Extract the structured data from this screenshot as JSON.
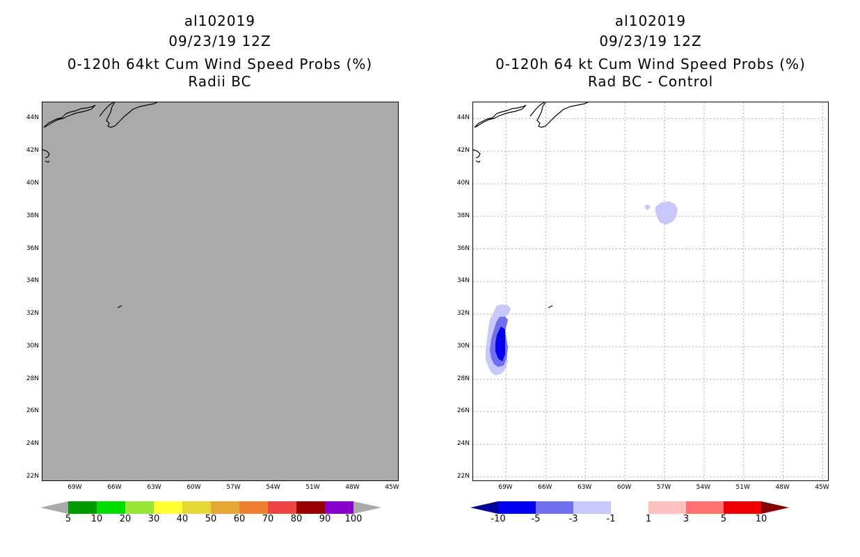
{
  "chart_data": [
    {
      "type": "heatmap",
      "title_lines": [
        "al102019",
        "09/23/19 12Z",
        "0-120h 64kt Cum Wind Speed Probs (%)",
        "Radii BC"
      ],
      "lon_ticks": [
        "69W",
        "66W",
        "63W",
        "60W",
        "57W",
        "54W",
        "51W",
        "48W",
        "45W"
      ],
      "lat_ticks": [
        "44N",
        "42N",
        "40N",
        "38N",
        "36N",
        "34N",
        "32N",
        "30N",
        "28N",
        "26N",
        "24N",
        "22N"
      ],
      "lon_range": [
        -71.5,
        -44.5
      ],
      "lat_range": [
        21.7,
        45.0
      ],
      "grid": false,
      "field_background": "#aaaaaa",
      "colorbar": {
        "labels": [
          "5",
          "10",
          "20",
          "30",
          "40",
          "50",
          "60",
          "70",
          "80",
          "90",
          "100"
        ],
        "colors": [
          "#009900",
          "#00dd00",
          "#99e533",
          "#ffff33",
          "#e5d933",
          "#e5a933",
          "#ee8033",
          "#ee4444",
          "#990000",
          "#8800cc"
        ],
        "under_color": "#aaaaaa",
        "over_color": "#aaaaaa"
      }
    },
    {
      "type": "heatmap",
      "title_lines": [
        "al102019",
        "09/23/19 12Z",
        "0-120h 64 kt Cum Wind Speed Probs (%)",
        "Rad BC - Control"
      ],
      "lon_ticks": [
        "69W",
        "66W",
        "63W",
        "60W",
        "57W",
        "54W",
        "51W",
        "48W",
        "45W"
      ],
      "lat_ticks": [
        "44N",
        "42N",
        "40N",
        "38N",
        "36N",
        "34N",
        "32N",
        "30N",
        "28N",
        "26N",
        "24N",
        "22N"
      ],
      "lon_range": [
        -71.5,
        -44.5
      ],
      "lat_range": [
        21.7,
        45.0
      ],
      "grid": true,
      "field_background": "#ffffff",
      "contours": [
        {
          "level": -1,
          "color": "#c8c8ff",
          "center": [
            -68.1,
            30.3
          ]
        },
        {
          "level": -3,
          "color": "#7070ee",
          "center": [
            -68.3,
            30.1
          ]
        },
        {
          "level": -5,
          "color": "#0000ee",
          "center": [
            -68.6,
            30.1
          ]
        },
        {
          "level": -1,
          "color": "#c8c8ff",
          "center": [
            -56.6,
            38.2
          ]
        },
        {
          "level": -1,
          "color": "#c8c8ff",
          "center": [
            -57.5,
            38.5
          ]
        }
      ],
      "colorbar": {
        "labels": [
          "-10",
          "-5",
          "-3",
          "-1",
          "1",
          "3",
          "5",
          "10"
        ],
        "colors": [
          "#0000ee",
          "#7070ee",
          "#c8c8ff",
          "#ffffff",
          "#ffc0c0",
          "#ff7070",
          "#ee0000"
        ],
        "under_color": "#000099",
        "over_color": "#880000"
      }
    }
  ]
}
